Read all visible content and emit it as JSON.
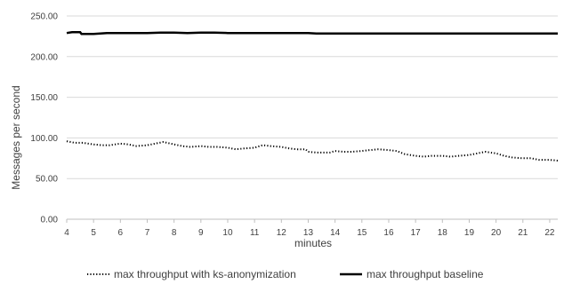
{
  "chart_data": {
    "type": "line",
    "title": "",
    "xlabel": "minutes",
    "ylabel": "Messages per second",
    "xlim": [
      4,
      22.3
    ],
    "ylim": [
      0,
      250
    ],
    "grid": "horizontal",
    "legend_placement": "bottom",
    "x_ticks": [
      4,
      5,
      6,
      7,
      8,
      9,
      10,
      11,
      12,
      13,
      14,
      15,
      16,
      17,
      18,
      19,
      20,
      21,
      22
    ],
    "x_tick_labels": [
      "4",
      "5",
      "6",
      "7",
      "8",
      "9",
      "10",
      "11",
      "12",
      "13",
      "14",
      "15",
      "16",
      "17",
      "18",
      "19",
      "20",
      "21",
      "22"
    ],
    "y_ticks": [
      0,
      50,
      100,
      150,
      200,
      250
    ],
    "y_tick_labels": [
      "0.00",
      "50.00",
      "100.00",
      "150.00",
      "200.00",
      "250.00"
    ],
    "series": [
      {
        "name": "max throughput with ks-anonymization",
        "color": "#000000",
        "style": "dotted",
        "x": [
          4.0,
          4.3,
          4.6,
          5.0,
          5.3,
          5.6,
          6.0,
          6.3,
          6.6,
          7.0,
          7.3,
          7.6,
          8.0,
          8.3,
          8.6,
          9.0,
          9.3,
          9.6,
          10.0,
          10.3,
          10.6,
          11.0,
          11.3,
          11.6,
          12.0,
          12.3,
          12.6,
          12.9,
          13.0,
          13.3,
          13.6,
          13.8,
          14.0,
          14.3,
          14.6,
          15.0,
          15.3,
          15.6,
          16.0,
          16.3,
          16.6,
          17.0,
          17.3,
          17.6,
          18.0,
          18.3,
          18.6,
          19.0,
          19.3,
          19.6,
          20.0,
          20.3,
          20.6,
          21.0,
          21.3,
          21.6,
          22.0,
          22.3
        ],
        "y": [
          96,
          94,
          94,
          92,
          91,
          91,
          93,
          92,
          90,
          91,
          93,
          95,
          92,
          90,
          89,
          90,
          89,
          89,
          88,
          86,
          87,
          88,
          91,
          90,
          89,
          87,
          86,
          86,
          83,
          82,
          82,
          82,
          84,
          83,
          83,
          84,
          85,
          86,
          85,
          84,
          80,
          78,
          77,
          78,
          78,
          77,
          78,
          79,
          81,
          83,
          81,
          78,
          76,
          75,
          75,
          73,
          73,
          72
        ]
      },
      {
        "name": "max throughput baseline",
        "color": "#000000",
        "style": "solid",
        "x": [
          4.0,
          4.2,
          4.5,
          4.55,
          5.0,
          5.5,
          6.0,
          6.5,
          7.0,
          7.5,
          8.0,
          8.5,
          9.0,
          9.5,
          10.0,
          11.0,
          12.0,
          13.0,
          13.3,
          14.0,
          15.0,
          16.0,
          17.0,
          18.0,
          19.0,
          20.0,
          21.0,
          22.0,
          22.3
        ],
        "y": [
          229,
          230,
          230,
          228,
          228,
          229,
          229,
          229,
          229,
          229.5,
          229.5,
          229,
          229.5,
          229.5,
          229,
          229,
          229,
          229,
          228.5,
          228.5,
          228.5,
          228.5,
          228.5,
          228.5,
          228.5,
          228.5,
          228.5,
          228.5,
          228.5
        ]
      }
    ]
  }
}
